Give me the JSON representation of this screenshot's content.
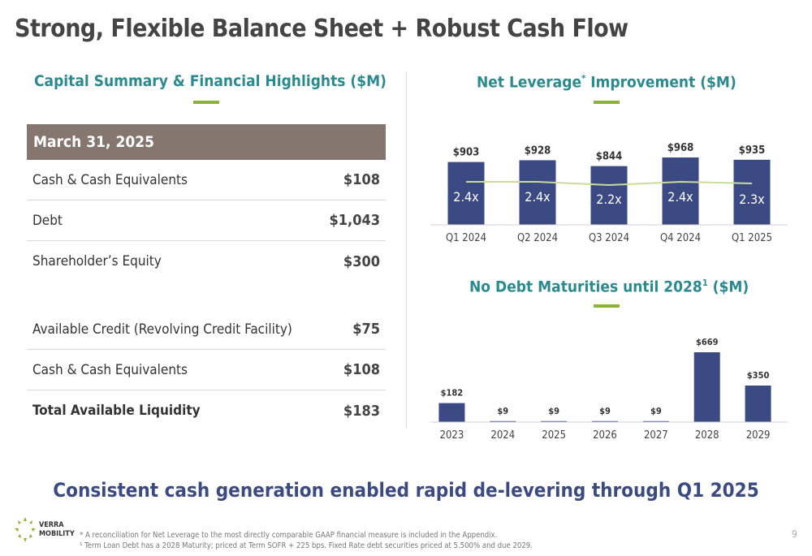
{
  "title": "Strong, Flexible Balance Sheet + Robust Cash Flow",
  "capital_summary": {
    "heading": "Capital Summary & Financial Highlights ($M)",
    "header": "March 31, 2025",
    "rows": [
      {
        "label": "Cash & Cash Equivalents",
        "value": "$108"
      },
      {
        "label": "Debt",
        "value": "$1,043"
      },
      {
        "label": "Shareholder’s Equity",
        "value": "$300"
      },
      {
        "label": "Available Credit (Revolving Credit Facility)",
        "value": "$75"
      },
      {
        "label": "Cash & Cash Equivalents",
        "value": "$108"
      },
      {
        "label": "Total Available Liquidity",
        "value": "$183"
      }
    ]
  },
  "net_leverage": {
    "heading": "Net Leverage",
    "heading_sup": "*",
    "heading_suffix": " Improvement ($M)"
  },
  "debt_maturities": {
    "heading": "No Debt Maturities until 2028",
    "heading_sup": "1",
    "heading_suffix": " ($M)"
  },
  "chart_data": [
    {
      "type": "bar",
      "categories": [
        "Q1 2024",
        "Q2 2024",
        "Q3 2024",
        "Q4 2024",
        "Q1 2025"
      ],
      "values": [
        903,
        928,
        844,
        968,
        935
      ],
      "value_labels": [
        "$903",
        "$928",
        "$844",
        "$968",
        "$935"
      ],
      "line_values": [
        2.4,
        2.4,
        2.2,
        2.4,
        2.3
      ],
      "line_labels": [
        "2.4x",
        "2.4x",
        "2.2x",
        "2.4x",
        "2.3x"
      ],
      "bar_color": "#3b4a82",
      "line_color": "#c9dba0"
    },
    {
      "type": "bar",
      "categories": [
        "2023",
        "2024",
        "2025",
        "2026",
        "2027",
        "2028",
        "2029"
      ],
      "values": [
        182,
        9,
        9,
        9,
        9,
        669,
        350
      ],
      "value_labels": [
        "$182",
        "$9",
        "$9",
        "$9",
        "$9",
        "$669",
        "$350"
      ],
      "bar_color": "#3b4a82"
    }
  ],
  "tagline": "Consistent cash generation enabled rapid de-levering through Q1 2025",
  "logo": {
    "line1": "VERRA",
    "line2": "MOBILITY"
  },
  "footnotes": [
    "* A reconciliation for Net Leverage to the most directly comparable GAAP financial measure is included in the Appendix.",
    "¹ Term Loan Debt has a 2028 Maturity; priced at Term SOFR + 225 bps. Fixed Rate debt securities priced at 5.500% and due 2029."
  ],
  "page_number": "9",
  "colors": {
    "teal": "#2a8a8f",
    "navy": "#3b4a82",
    "green": "#8bb33a",
    "taupe": "#85766f"
  }
}
